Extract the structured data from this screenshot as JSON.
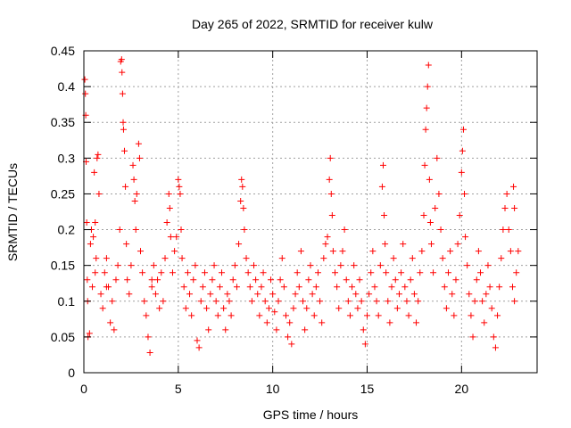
{
  "chart_data": {
    "type": "scatter",
    "title": "Day 265 of 2022, SRMTID for receiver kulw",
    "xlabel": "GPS time / hours",
    "ylabel": "SRMTID / TECUs",
    "xlim": [
      0,
      24
    ],
    "ylim": [
      0,
      0.45
    ],
    "x_ticks": [
      0,
      5,
      10,
      15,
      20
    ],
    "x_tick_labels": [
      "0",
      "5",
      "10",
      "15",
      "20"
    ],
    "y_ticks": [
      0,
      0.05,
      0.1,
      0.15,
      0.2,
      0.25,
      0.3,
      0.35,
      0.4,
      0.45
    ],
    "y_tick_labels": [
      "0",
      "0.05",
      "0.1",
      "0.15",
      "0.2",
      "0.25",
      "0.3",
      "0.35",
      "0.4",
      "0.45"
    ],
    "grid": true,
    "marker": "+",
    "color": "#ff0000",
    "series": [
      {
        "name": "SRMTID",
        "points": [
          [
            0.05,
            0.41
          ],
          [
            0.08,
            0.39
          ],
          [
            0.1,
            0.36
          ],
          [
            0.12,
            0.295
          ],
          [
            0.15,
            0.21
          ],
          [
            0.18,
            0.13
          ],
          [
            0.2,
            0.1
          ],
          [
            0.22,
            0.05
          ],
          [
            0.3,
            0.055
          ],
          [
            0.35,
            0.18
          ],
          [
            0.4,
            0.2
          ],
          [
            0.45,
            0.12
          ],
          [
            0.5,
            0.19
          ],
          [
            0.55,
            0.28
          ],
          [
            0.6,
            0.21
          ],
          [
            0.65,
            0.16
          ],
          [
            0.7,
            0.3
          ],
          [
            0.75,
            0.305
          ],
          [
            0.8,
            0.25
          ],
          [
            0.9,
            0.11
          ],
          [
            1.0,
            0.09
          ],
          [
            1.1,
            0.14
          ],
          [
            1.2,
            0.16
          ],
          [
            1.3,
            0.12
          ],
          [
            1.4,
            0.07
          ],
          [
            1.5,
            0.1
          ],
          [
            1.6,
            0.06
          ],
          [
            1.7,
            0.13
          ],
          [
            1.8,
            0.15
          ],
          [
            1.9,
            0.2
          ],
          [
            1.95,
            0.435
          ],
          [
            2.0,
            0.438
          ],
          [
            2.02,
            0.42
          ],
          [
            2.05,
            0.39
          ],
          [
            2.08,
            0.35
          ],
          [
            2.1,
            0.34
          ],
          [
            2.15,
            0.31
          ],
          [
            2.2,
            0.26
          ],
          [
            2.25,
            0.18
          ],
          [
            2.3,
            0.13
          ],
          [
            2.4,
            0.11
          ],
          [
            2.5,
            0.15
          ],
          [
            2.6,
            0.29
          ],
          [
            2.65,
            0.27
          ],
          [
            2.7,
            0.24
          ],
          [
            2.75,
            0.2
          ],
          [
            2.8,
            0.25
          ],
          [
            2.9,
            0.32
          ],
          [
            2.95,
            0.3
          ],
          [
            3.0,
            0.17
          ],
          [
            3.1,
            0.14
          ],
          [
            3.2,
            0.1
          ],
          [
            3.3,
            0.08
          ],
          [
            3.4,
            0.05
          ],
          [
            3.5,
            0.028
          ],
          [
            3.6,
            0.12
          ],
          [
            3.7,
            0.15
          ],
          [
            3.8,
            0.11
          ],
          [
            3.9,
            0.13
          ],
          [
            4.0,
            0.09
          ],
          [
            4.1,
            0.14
          ],
          [
            4.2,
            0.1
          ],
          [
            4.3,
            0.16
          ],
          [
            4.4,
            0.21
          ],
          [
            4.5,
            0.25
          ],
          [
            4.55,
            0.23
          ],
          [
            4.6,
            0.19
          ],
          [
            4.7,
            0.14
          ],
          [
            4.8,
            0.17
          ],
          [
            4.9,
            0.19
          ],
          [
            5.0,
            0.27
          ],
          [
            5.05,
            0.26
          ],
          [
            5.1,
            0.25
          ],
          [
            5.15,
            0.2
          ],
          [
            5.2,
            0.16
          ],
          [
            5.3,
            0.12
          ],
          [
            5.4,
            0.09
          ],
          [
            5.5,
            0.14
          ],
          [
            5.6,
            0.11
          ],
          [
            5.7,
            0.08
          ],
          [
            5.8,
            0.13
          ],
          [
            5.9,
            0.15
          ],
          [
            6.0,
            0.045
          ],
          [
            6.1,
            0.035
          ],
          [
            6.2,
            0.1
          ],
          [
            6.3,
            0.12
          ],
          [
            6.4,
            0.14
          ],
          [
            6.5,
            0.09
          ],
          [
            6.6,
            0.06
          ],
          [
            6.7,
            0.11
          ],
          [
            6.8,
            0.13
          ],
          [
            6.9,
            0.15
          ],
          [
            7.0,
            0.1
          ],
          [
            7.1,
            0.08
          ],
          [
            7.2,
            0.12
          ],
          [
            7.3,
            0.14
          ],
          [
            7.4,
            0.09
          ],
          [
            7.5,
            0.06
          ],
          [
            7.6,
            0.11
          ],
          [
            7.7,
            0.1
          ],
          [
            7.8,
            0.08
          ],
          [
            7.9,
            0.13
          ],
          [
            8.0,
            0.15
          ],
          [
            8.1,
            0.12
          ],
          [
            8.2,
            0.18
          ],
          [
            8.3,
            0.24
          ],
          [
            8.35,
            0.27
          ],
          [
            8.4,
            0.26
          ],
          [
            8.45,
            0.23
          ],
          [
            8.5,
            0.2
          ],
          [
            8.6,
            0.16
          ],
          [
            8.7,
            0.14
          ],
          [
            8.8,
            0.12
          ],
          [
            8.9,
            0.1
          ],
          [
            9.0,
            0.15
          ],
          [
            9.1,
            0.13
          ],
          [
            9.2,
            0.11
          ],
          [
            9.3,
            0.08
          ],
          [
            9.4,
            0.12
          ],
          [
            9.5,
            0.14
          ],
          [
            9.6,
            0.1
          ],
          [
            9.7,
            0.07
          ],
          [
            9.8,
            0.09
          ],
          [
            9.9,
            0.13
          ],
          [
            10.0,
            0.11
          ],
          [
            10.1,
            0.085
          ],
          [
            10.2,
            0.06
          ],
          [
            10.3,
            0.1
          ],
          [
            10.4,
            0.13
          ],
          [
            10.5,
            0.16
          ],
          [
            10.6,
            0.12
          ],
          [
            10.7,
            0.08
          ],
          [
            10.8,
            0.05
          ],
          [
            10.9,
            0.07
          ],
          [
            11.0,
            0.04
          ],
          [
            11.1,
            0.09
          ],
          [
            11.2,
            0.11
          ],
          [
            11.3,
            0.14
          ],
          [
            11.4,
            0.12
          ],
          [
            11.5,
            0.17
          ],
          [
            11.6,
            0.1
          ],
          [
            11.7,
            0.06
          ],
          [
            11.8,
            0.09
          ],
          [
            11.9,
            0.13
          ],
          [
            12.0,
            0.15
          ],
          [
            12.1,
            0.11
          ],
          [
            12.2,
            0.08
          ],
          [
            12.3,
            0.12
          ],
          [
            12.4,
            0.14
          ],
          [
            12.5,
            0.1
          ],
          [
            12.6,
            0.07
          ],
          [
            12.7,
            0.16
          ],
          [
            12.8,
            0.18
          ],
          [
            12.9,
            0.19
          ],
          [
            13.0,
            0.27
          ],
          [
            13.05,
            0.3
          ],
          [
            13.1,
            0.25
          ],
          [
            13.15,
            0.22
          ],
          [
            13.2,
            0.17
          ],
          [
            13.3,
            0.14
          ],
          [
            13.4,
            0.12
          ],
          [
            13.5,
            0.09
          ],
          [
            13.6,
            0.15
          ],
          [
            13.7,
            0.17
          ],
          [
            13.8,
            0.2
          ],
          [
            13.9,
            0.13
          ],
          [
            14.0,
            0.1
          ],
          [
            14.1,
            0.08
          ],
          [
            14.2,
            0.12
          ],
          [
            14.3,
            0.15
          ],
          [
            14.4,
            0.11
          ],
          [
            14.5,
            0.09
          ],
          [
            14.6,
            0.13
          ],
          [
            14.7,
            0.1
          ],
          [
            14.8,
            0.06
          ],
          [
            14.9,
            0.04
          ],
          [
            15.0,
            0.08
          ],
          [
            15.1,
            0.11
          ],
          [
            15.2,
            0.14
          ],
          [
            15.3,
            0.17
          ],
          [
            15.4,
            0.12
          ],
          [
            15.5,
            0.1
          ],
          [
            15.6,
            0.08
          ],
          [
            15.7,
            0.15
          ],
          [
            15.8,
            0.26
          ],
          [
            15.85,
            0.29
          ],
          [
            15.9,
            0.22
          ],
          [
            15.95,
            0.18
          ],
          [
            16.0,
            0.14
          ],
          [
            16.1,
            0.1
          ],
          [
            16.2,
            0.07
          ],
          [
            16.3,
            0.12
          ],
          [
            16.4,
            0.16
          ],
          [
            16.5,
            0.13
          ],
          [
            16.6,
            0.09
          ],
          [
            16.7,
            0.11
          ],
          [
            16.8,
            0.14
          ],
          [
            16.9,
            0.18
          ],
          [
            17.0,
            0.12
          ],
          [
            17.1,
            0.1
          ],
          [
            17.2,
            0.08
          ],
          [
            17.3,
            0.13
          ],
          [
            17.4,
            0.16
          ],
          [
            17.5,
            0.11
          ],
          [
            17.6,
            0.07
          ],
          [
            17.7,
            0.1
          ],
          [
            17.8,
            0.14
          ],
          [
            17.9,
            0.17
          ],
          [
            18.0,
            0.22
          ],
          [
            18.05,
            0.29
          ],
          [
            18.1,
            0.34
          ],
          [
            18.15,
            0.37
          ],
          [
            18.2,
            0.4
          ],
          [
            18.25,
            0.43
          ],
          [
            18.3,
            0.27
          ],
          [
            18.35,
            0.21
          ],
          [
            18.4,
            0.18
          ],
          [
            18.5,
            0.14
          ],
          [
            18.6,
            0.23
          ],
          [
            18.7,
            0.3
          ],
          [
            18.8,
            0.25
          ],
          [
            18.9,
            0.2
          ],
          [
            19.0,
            0.16
          ],
          [
            19.1,
            0.12
          ],
          [
            19.2,
            0.09
          ],
          [
            19.3,
            0.14
          ],
          [
            19.4,
            0.17
          ],
          [
            19.5,
            0.11
          ],
          [
            19.6,
            0.08
          ],
          [
            19.7,
            0.13
          ],
          [
            19.8,
            0.18
          ],
          [
            19.9,
            0.22
          ],
          [
            20.0,
            0.28
          ],
          [
            20.05,
            0.31
          ],
          [
            20.1,
            0.34
          ],
          [
            20.15,
            0.25
          ],
          [
            20.2,
            0.19
          ],
          [
            20.3,
            0.15
          ],
          [
            20.4,
            0.11
          ],
          [
            20.5,
            0.08
          ],
          [
            20.6,
            0.05
          ],
          [
            20.7,
            0.1
          ],
          [
            20.8,
            0.13
          ],
          [
            20.9,
            0.17
          ],
          [
            21.0,
            0.14
          ],
          [
            21.1,
            0.1
          ],
          [
            21.2,
            0.07
          ],
          [
            21.3,
            0.11
          ],
          [
            21.4,
            0.15
          ],
          [
            21.5,
            0.12
          ],
          [
            21.6,
            0.09
          ],
          [
            21.7,
            0.05
          ],
          [
            21.8,
            0.035
          ],
          [
            21.9,
            0.08
          ],
          [
            22.0,
            0.12
          ],
          [
            22.1,
            0.16
          ],
          [
            22.2,
            0.2
          ],
          [
            22.3,
            0.23
          ],
          [
            22.4,
            0.25
          ],
          [
            22.5,
            0.2
          ],
          [
            22.6,
            0.17
          ],
          [
            22.7,
            0.12
          ],
          [
            22.8,
            0.1
          ],
          [
            22.9,
            0.14
          ],
          [
            23.0,
            0.17
          ],
          [
            22.75,
            0.26
          ],
          [
            22.8,
            0.23
          ],
          [
            0.6,
            0.14
          ],
          [
            1.2,
            0.12
          ],
          [
            3.6,
            0.13
          ]
        ]
      }
    ]
  }
}
